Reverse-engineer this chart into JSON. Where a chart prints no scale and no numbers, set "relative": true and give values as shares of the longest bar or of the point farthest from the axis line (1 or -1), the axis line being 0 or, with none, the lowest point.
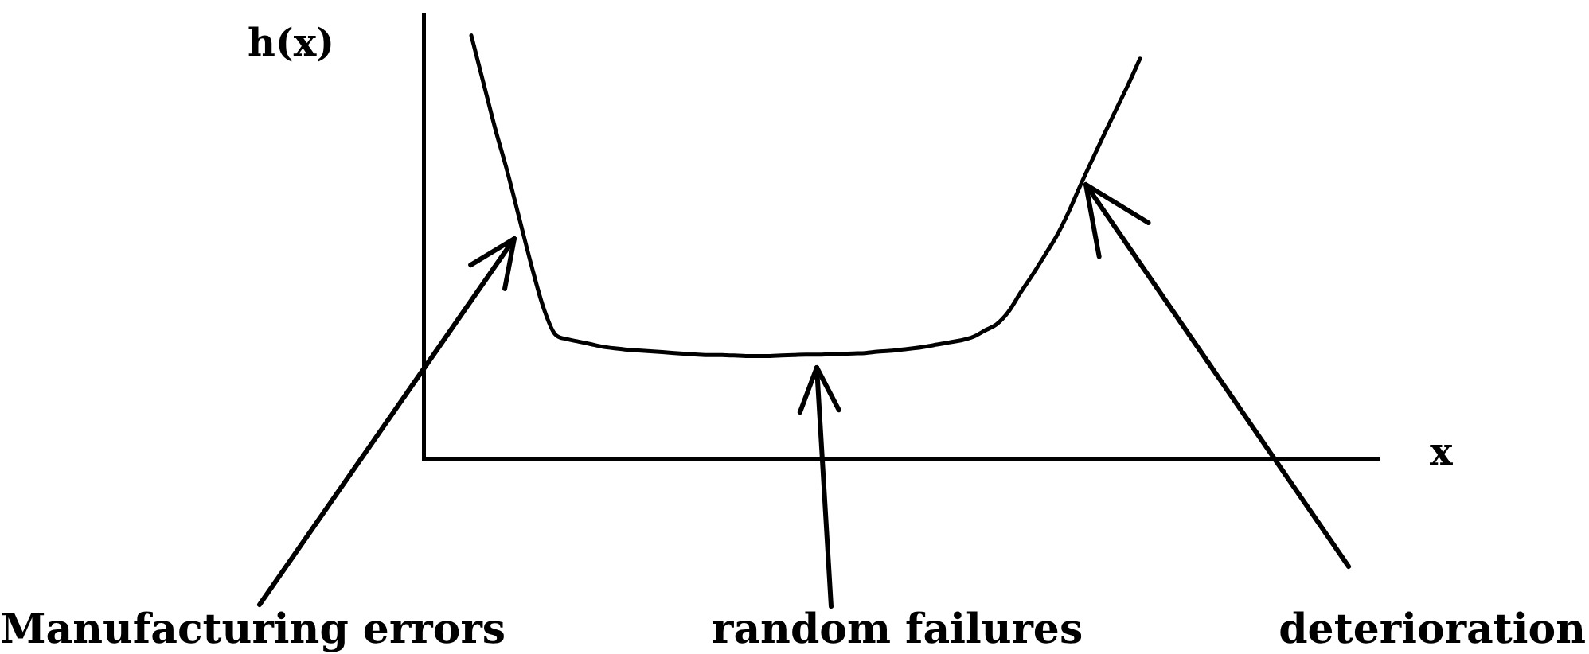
{
  "chart_data": {
    "type": "line",
    "relative": true,
    "xlabel": "x",
    "ylabel": "h(x)",
    "marker": "none",
    "color": "#000000",
    "categories": [
      null,
      null,
      null,
      null,
      null,
      null,
      null,
      null,
      null,
      null,
      null,
      null,
      null,
      null,
      null,
      null,
      null,
      null,
      null,
      null,
      null,
      null,
      null,
      null,
      null,
      null,
      null,
      null,
      null,
      null,
      null,
      null,
      null,
      null,
      null,
      null,
      null,
      null,
      null,
      null,
      null,
      null,
      null,
      null,
      null,
      null,
      null,
      null,
      null,
      null,
      null,
      null,
      null,
      null,
      null,
      null,
      null,
      null,
      null,
      null,
      null,
      null,
      null,
      null,
      null,
      null,
      null,
      null,
      null,
      null,
      null,
      null,
      null,
      null,
      null,
      null,
      null,
      null,
      null,
      null,
      null
    ],
    "values": [
      null,
      null,
      null,
      null,
      1,
      0.89,
      0.78,
      0.68,
      0.57,
      0.46,
      0.36,
      0.294,
      0.282,
      0.276,
      0.27,
      0.264,
      0.26,
      0.257,
      0.255,
      0.253,
      0.251,
      0.249,
      0.247,
      0.245,
      0.244,
      0.244,
      0.243,
      0.242,
      0.242,
      0.242,
      0.243,
      0.244,
      0.245,
      0.245,
      0.246,
      0.247,
      0.248,
      0.249,
      0.252,
      0.254,
      0.257,
      0.26,
      0.264,
      0.269,
      0.274,
      0.279,
      0.287,
      0.302,
      0.317,
      0.347,
      0.392,
      0.434,
      0.479,
      0.525,
      0.581,
      0.645,
      0.706,
      0.766,
      0.825,
      0.883,
      0.945,
      null,
      null,
      null,
      null,
      null,
      null,
      null,
      null,
      null,
      null,
      null,
      null,
      null,
      null,
      null,
      null,
      null,
      null,
      null,
      null
    ],
    "annotations": [
      "Manufacturing errors",
      "random failures",
      "deterioration"
    ]
  }
}
